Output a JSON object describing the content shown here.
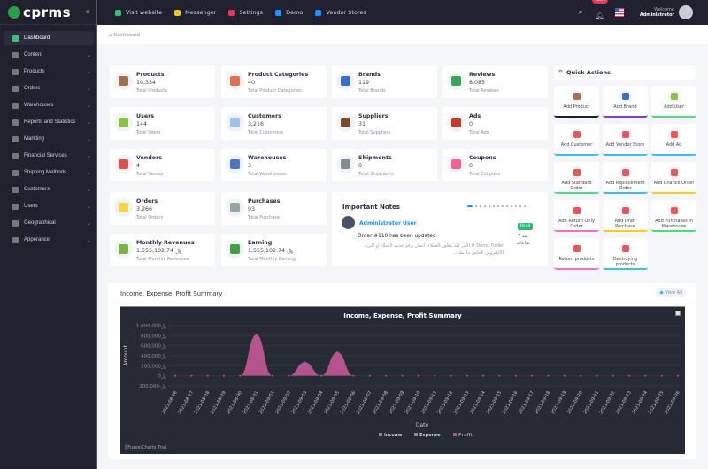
{
  "brand": {
    "name": "cprms"
  },
  "topbar": {
    "links": [
      {
        "label": "Visit website",
        "icon": "globe-icon",
        "color": "#35c46a"
      },
      {
        "label": "Messenger",
        "icon": "chat-icon",
        "color": "#f5c518"
      },
      {
        "label": "Settings",
        "icon": "sliders-icon",
        "color": "#e8365d"
      },
      {
        "label": "Demo",
        "icon": "store-icon",
        "color": "#1e90ff"
      },
      {
        "label": "Vendor Stores",
        "icon": "store-icon",
        "color": "#1e90ff"
      }
    ],
    "notification_count": "4854",
    "welcome": "Welcome",
    "user": "Administrator"
  },
  "sidebar": {
    "items": [
      {
        "label": "Dashboard",
        "active": true
      },
      {
        "label": "Content"
      },
      {
        "label": "Products"
      },
      {
        "label": "Orders"
      },
      {
        "label": "Warehouses"
      },
      {
        "label": "Reports and Statistics"
      },
      {
        "label": "Markting"
      },
      {
        "label": "Financial Services"
      },
      {
        "label": "Shipping Methods"
      },
      {
        "label": "Customers"
      },
      {
        "label": "Users"
      },
      {
        "label": "Geographical"
      },
      {
        "label": "Apperance"
      }
    ]
  },
  "breadcrumb": "Dashboard",
  "stats": [
    {
      "title": "Products",
      "value": "10,334",
      "sub": "Total Products",
      "color": "#a0714f"
    },
    {
      "title": "Product Categories",
      "value": "40",
      "sub": "Total Product Categories",
      "color": "#e07050"
    },
    {
      "title": "Brands",
      "value": "119",
      "sub": "Total Brands",
      "color": "#3b6fc4"
    },
    {
      "title": "Reviews",
      "value": "8,085",
      "sub": "Total Reviews",
      "color": "#3aa655"
    },
    {
      "title": "Users",
      "value": "144",
      "sub": "Total Users",
      "color": "#8bc34a"
    },
    {
      "title": "Customers",
      "value": "3,216",
      "sub": "Total Customers",
      "color": "#9cc3e6"
    },
    {
      "title": "Suppliers",
      "value": "31",
      "sub": "Total Suppliers",
      "color": "#7a4a2a"
    },
    {
      "title": "Ads",
      "value": "0",
      "sub": "Total Ads",
      "color": "#c0392b"
    },
    {
      "title": "Vendors",
      "value": "4",
      "sub": "Total Vendor",
      "color": "#d9534f"
    },
    {
      "title": "Warehouses",
      "value": "3",
      "sub": "Total Warehouses",
      "color": "#4a78c0"
    },
    {
      "title": "Shipments",
      "value": "0",
      "sub": "Total Shipments",
      "color": "#7f8c8d"
    },
    {
      "title": "Coupons",
      "value": "0",
      "sub": "Total Coupons",
      "color": "#f06292"
    },
    {
      "title": "Orders",
      "value": "3,266",
      "sub": "Total Orders",
      "color": "#f5d547"
    },
    {
      "title": "Purchases",
      "value": "93",
      "sub": "Total Purchase",
      "color": "#95a5a6"
    },
    {
      "title": "Monthly Revenues",
      "value": "1,555,102.74 ﷼",
      "sub": "Total Monthly Revenues",
      "color": "#7cb342"
    },
    {
      "title": "Earning",
      "value": "1,555,102.74 ﷼",
      "sub": "Total Monthly Earning",
      "color": "#43a047"
    }
  ],
  "notes": {
    "title": "Important Notes",
    "author": "Administrator User",
    "heading": "Order #110 has been updated",
    "body": "Demo Order # الأمر كله يتعلق بالعملاء! اتصل برقم خدمة العملاء أو البريد الإلكتروني الخاص بنا بمك...",
    "status": "Read",
    "time": "منذ 7 ساعات"
  },
  "quick_actions": {
    "title": "Quick Actions",
    "items": [
      {
        "label": "Add Product",
        "color": "#1e2030"
      },
      {
        "label": "Add Brand",
        "color": "#7c3aed"
      },
      {
        "label": "Add User",
        "color": "#4ade80"
      },
      {
        "label": "Add Customer",
        "color": "#38bdf8"
      },
      {
        "label": "Add Vendor Store",
        "color": "#38bdf8"
      },
      {
        "label": "Add Ad",
        "color": "#38bdf8"
      },
      {
        "label": "Add Standard Order",
        "color": "#4ade80"
      },
      {
        "label": "Add Replacement Order",
        "color": "#38bdf8"
      },
      {
        "label": "Add Chance Order",
        "color": "#facc15"
      },
      {
        "label": "Add Return Only Order",
        "color": "#f472b6"
      },
      {
        "label": "Add Draft Purchase",
        "color": "#facc15"
      },
      {
        "label": "Add Purchases In Warehouse",
        "color": "#4ade80"
      },
      {
        "label": "Return products",
        "color": "#f472b6"
      },
      {
        "label": "Destroying products",
        "color": "#38bdf8"
      }
    ]
  },
  "summary": {
    "title": "Income, Expense, Profit Summary",
    "view_all": "View All",
    "watermark": "FusionCharts Trial"
  },
  "chart_data": {
    "type": "area",
    "title": "Income, Expense, Profit Summary",
    "xlabel": "Date",
    "ylabel": "Amount",
    "y_ticks": [
      "﷼-200,000",
      "﷼0",
      "﷼200,000",
      "﷼400,000",
      "﷼600,000",
      "﷼800,000",
      "﷼1,000,000"
    ],
    "ylim": [
      -200000,
      1000000
    ],
    "legend": [
      "Income",
      "Expense",
      "Profit"
    ],
    "legend_position": "bottom",
    "series_colors": {
      "Income": "#888888",
      "Expense": "#888888",
      "Profit": "#b5548a"
    },
    "x": [
      "2023-08-26",
      "2023-08-27",
      "2023-08-28",
      "2023-08-29",
      "2023-08-30",
      "2023-08-31",
      "2023-09-01",
      "2023-09-02",
      "2023-09-03",
      "2023-09-04",
      "2023-09-05",
      "2023-09-06",
      "2023-09-07",
      "2023-09-08",
      "2023-09-09",
      "2023-09-10",
      "2023-09-11",
      "2023-09-12",
      "2023-09-13",
      "2023-09-14",
      "2023-09-15",
      "2023-09-16",
      "2023-09-17",
      "2023-09-18",
      "2023-09-19",
      "2023-09-20",
      "2023-09-21",
      "2023-09-22",
      "2023-09-23",
      "2023-09-24",
      "2023-09-25",
      "2023-09-26"
    ],
    "series": [
      {
        "name": "Profit",
        "values": [
          0,
          0,
          0,
          0,
          0,
          820000,
          0,
          0,
          270000,
          0,
          470000,
          0,
          0,
          0,
          0,
          0,
          0,
          0,
          0,
          0,
          0,
          0,
          0,
          0,
          0,
          0,
          0,
          0,
          0,
          0,
          0,
          0
        ]
      }
    ]
  }
}
